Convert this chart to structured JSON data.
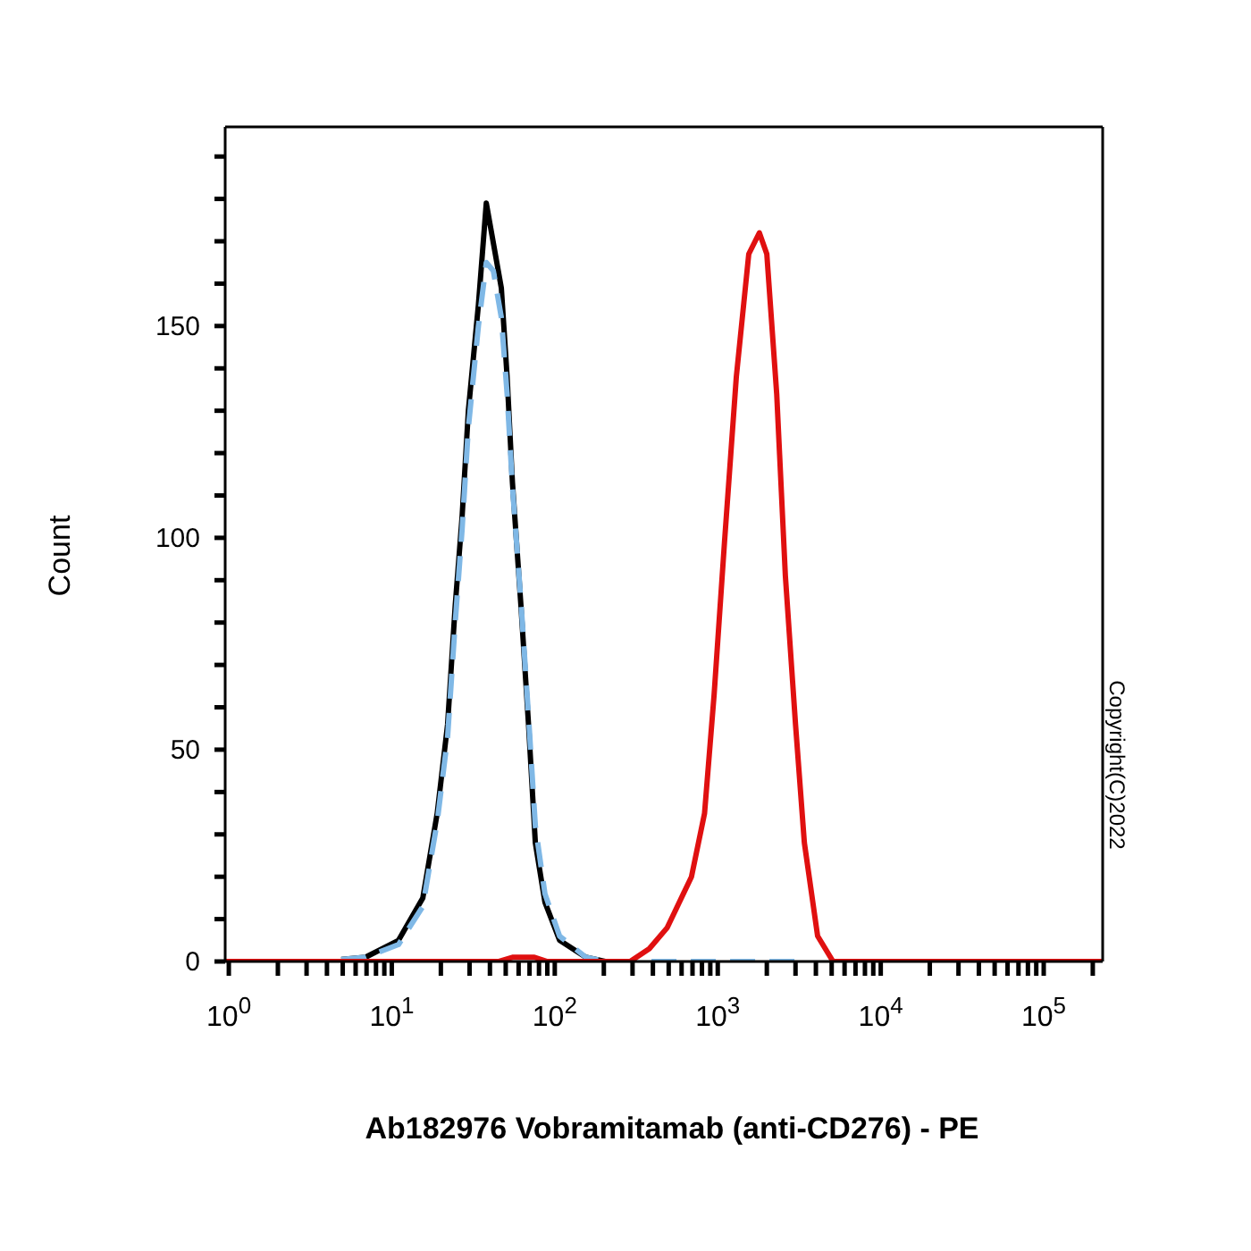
{
  "chart_data": {
    "type": "line",
    "xlabel": "Ab182976 Vobramitamab (anti-CD276) - PE",
    "ylabel": "Count",
    "log": "x",
    "xlim": [
      0.95,
      230000
    ],
    "ylim": [
      0,
      197
    ],
    "xticks": [
      {
        "value": 1,
        "label": "10$^{0}$"
      },
      {
        "value": 2,
        "label": null
      },
      {
        "value": 3,
        "label": null
      },
      {
        "value": 4,
        "label": null
      },
      {
        "value": 5,
        "label": null
      },
      {
        "value": 6,
        "label": null
      },
      {
        "value": 7,
        "label": null
      },
      {
        "value": 8,
        "label": null
      },
      {
        "value": 9,
        "label": null
      },
      {
        "value": 10,
        "label": "10$^{1}$"
      },
      {
        "value": 20,
        "label": null
      },
      {
        "value": 30,
        "label": null
      },
      {
        "value": 40,
        "label": null
      },
      {
        "value": 50,
        "label": null
      },
      {
        "value": 60,
        "label": null
      },
      {
        "value": 70,
        "label": null
      },
      {
        "value": 80,
        "label": null
      },
      {
        "value": 90,
        "label": null
      },
      {
        "value": 100,
        "label": "10$^{2}$"
      },
      {
        "value": 200,
        "label": null
      },
      {
        "value": 300,
        "label": null
      },
      {
        "value": 400,
        "label": null
      },
      {
        "value": 500,
        "label": null
      },
      {
        "value": 600,
        "label": null
      },
      {
        "value": 700,
        "label": null
      },
      {
        "value": 800,
        "label": null
      },
      {
        "value": 900,
        "label": null
      },
      {
        "value": 1000,
        "label": "10$^{3}$"
      },
      {
        "value": 2000,
        "label": null
      },
      {
        "value": 3000,
        "label": null
      },
      {
        "value": 4000,
        "label": null
      },
      {
        "value": 5000,
        "label": null
      },
      {
        "value": 6000,
        "label": null
      },
      {
        "value": 7000,
        "label": null
      },
      {
        "value": 8000,
        "label": null
      },
      {
        "value": 9000,
        "label": null
      },
      {
        "value": 10000,
        "label": "10$^{4}$"
      },
      {
        "value": 20000,
        "label": null
      },
      {
        "value": 30000,
        "label": null
      },
      {
        "value": 40000,
        "label": null
      },
      {
        "value": 50000,
        "label": null
      },
      {
        "value": 60000,
        "label": null
      },
      {
        "value": 70000,
        "label": null
      },
      {
        "value": 80000,
        "label": null
      },
      {
        "value": 90000,
        "label": null
      },
      {
        "value": 100000,
        "label": "10$^{5}$"
      },
      {
        "value": 200000,
        "label": null
      }
    ],
    "yticks": [
      0,
      {
        "value": 10,
        "label": null
      },
      {
        "value": 20,
        "label": null
      },
      {
        "value": 30,
        "label": null
      },
      {
        "value": 40,
        "label": null
      },
      50,
      {
        "value": 60,
        "label": null
      },
      {
        "value": 70,
        "label": null
      },
      {
        "value": 80,
        "label": null
      },
      {
        "value": 90,
        "label": null
      },
      100,
      {
        "value": 110,
        "label": null
      },
      {
        "value": 120,
        "label": null
      },
      {
        "value": 130,
        "label": null
      },
      {
        "value": 140,
        "label": null
      },
      150,
      {
        "value": 160,
        "label": null
      },
      {
        "value": 170,
        "label": null
      },
      {
        "value": 180,
        "label": null
      },
      {
        "value": 190,
        "label": null
      }
    ],
    "marker": "none",
    "series": [
      {
        "color": "#000000",
        "line_style": "solid",
        "x": [
          4.9,
          6.9,
          11,
          15.5,
          19,
          22,
          24.5,
          27,
          29.5,
          34,
          38,
          47,
          51,
          55,
          62,
          69,
          76,
          87,
          107,
          155,
          204
        ],
        "values": [
          0.5,
          1,
          5,
          15,
          35,
          56,
          84,
          105,
          130,
          155,
          179,
          159,
          138,
          113,
          84,
          56,
          28,
          14,
          5,
          1,
          0
        ]
      },
      {
        "color": "#7fb8e6",
        "line_style": "dashed",
        "x": [
          4.9,
          6.9,
          11,
          15.5,
          19,
          22,
          24.5,
          27,
          29.5,
          34,
          38,
          42,
          47,
          51,
          55,
          62,
          69,
          76,
          87,
          107,
          155,
          204,
          3000
        ],
        "values": [
          0.5,
          1,
          4,
          13,
          33,
          53,
          80,
          102,
          126,
          150,
          165,
          163,
          152,
          134,
          112,
          85,
          58,
          32,
          16,
          6,
          1,
          0,
          0
        ]
      },
      {
        "color": "#e01010",
        "line_style": "solid",
        "x": [
          0.95,
          45,
          55,
          75,
          90,
          290,
          380,
          490,
          690,
          830,
          950,
          1100,
          1300,
          1550,
          1800,
          2000,
          2300,
          2600,
          3000,
          3400,
          4100,
          5100,
          230000
        ],
        "values": [
          0,
          0,
          1,
          1,
          0,
          0,
          3,
          8,
          20,
          35,
          63,
          99,
          138,
          167,
          172,
          167,
          134,
          91,
          56,
          28,
          6,
          0,
          0
        ]
      }
    ],
    "annotations": [
      "Copyright(C)2022"
    ]
  }
}
